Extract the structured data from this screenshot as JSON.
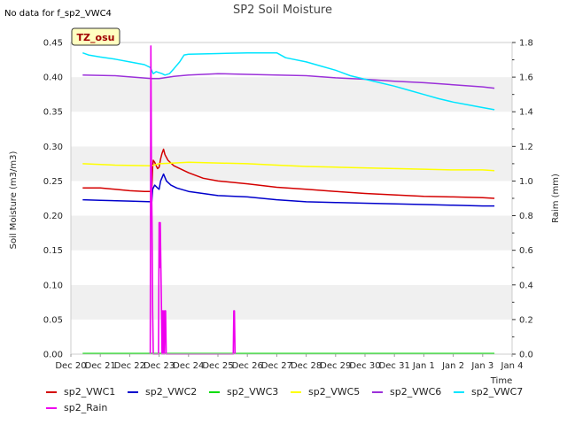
{
  "header": {
    "title": "SP2 Soil Moisture",
    "no_data": "No data for f_sp2_VWC4",
    "tz_badge": "TZ_osu"
  },
  "chart_data": {
    "type": "line",
    "title": "SP2 Soil Moisture",
    "xlabel": "Time",
    "ylabel": "Soil Moisture (m3/m3)",
    "y2label": "Raim (mm)",
    "xlim": [
      0,
      15
    ],
    "ylim": [
      0,
      0.45
    ],
    "y2lim": [
      0,
      1.8
    ],
    "x_ticks": [
      {
        "x": 0,
        "label": "Dec 20"
      },
      {
        "x": 1,
        "label": "Dec 21"
      },
      {
        "x": 2,
        "label": "Dec 22"
      },
      {
        "x": 3,
        "label": "Dec 23"
      },
      {
        "x": 4,
        "label": "Dec 24"
      },
      {
        "x": 5,
        "label": "Dec 25"
      },
      {
        "x": 6,
        "label": "Dec 26"
      },
      {
        "x": 7,
        "label": "Dec 27"
      },
      {
        "x": 8,
        "label": "Dec 28"
      },
      {
        "x": 9,
        "label": "Dec 29"
      },
      {
        "x": 10,
        "label": "Dec 30"
      },
      {
        "x": 11,
        "label": "Dec 31"
      },
      {
        "x": 12,
        "label": "Jan 1"
      },
      {
        "x": 13,
        "label": "Jan 2"
      },
      {
        "x": 14,
        "label": "Jan 3"
      },
      {
        "x": 15,
        "label": "Jan 4"
      }
    ],
    "y_ticks": [
      "0.00",
      "0.05",
      "0.10",
      "0.15",
      "0.20",
      "0.25",
      "0.30",
      "0.35",
      "0.40",
      "0.45"
    ],
    "y2_ticks": [
      "0.0",
      "0.2",
      "0.4",
      "0.6",
      "0.8",
      "1.0",
      "1.2",
      "1.4",
      "1.6",
      "1.8"
    ],
    "grid": "horizontal bands",
    "legend_position": "bottom",
    "series": [
      {
        "name": "sp2_VWC1",
        "color": "#d40000",
        "axis": "left",
        "points": [
          [
            0.4,
            0.24
          ],
          [
            1.0,
            0.24
          ],
          [
            1.5,
            0.238
          ],
          [
            2.0,
            0.236
          ],
          [
            2.5,
            0.235
          ],
          [
            2.75,
            0.235
          ],
          [
            2.78,
            0.27
          ],
          [
            2.8,
            0.28
          ],
          [
            2.85,
            0.277
          ],
          [
            2.9,
            0.272
          ],
          [
            2.95,
            0.268
          ],
          [
            3.0,
            0.27
          ],
          [
            3.05,
            0.282
          ],
          [
            3.1,
            0.29
          ],
          [
            3.15,
            0.296
          ],
          [
            3.2,
            0.288
          ],
          [
            3.3,
            0.28
          ],
          [
            3.5,
            0.272
          ],
          [
            4.0,
            0.262
          ],
          [
            4.5,
            0.254
          ],
          [
            5.0,
            0.25
          ],
          [
            6.0,
            0.246
          ],
          [
            7.0,
            0.241
          ],
          [
            8.0,
            0.238
          ],
          [
            9.0,
            0.235
          ],
          [
            10.0,
            0.232
          ],
          [
            11.0,
            0.23
          ],
          [
            12.0,
            0.228
          ],
          [
            13.0,
            0.227
          ],
          [
            14.0,
            0.226
          ],
          [
            14.4,
            0.225
          ]
        ]
      },
      {
        "name": "sp2_VWC2",
        "color": "#0000cc",
        "axis": "left",
        "points": [
          [
            0.4,
            0.223
          ],
          [
            1.0,
            0.222
          ],
          [
            2.0,
            0.221
          ],
          [
            2.75,
            0.22
          ],
          [
            2.78,
            0.238
          ],
          [
            2.85,
            0.244
          ],
          [
            2.95,
            0.24
          ],
          [
            3.0,
            0.238
          ],
          [
            3.05,
            0.25
          ],
          [
            3.15,
            0.26
          ],
          [
            3.25,
            0.25
          ],
          [
            3.4,
            0.244
          ],
          [
            3.6,
            0.24
          ],
          [
            4.0,
            0.235
          ],
          [
            5.0,
            0.229
          ],
          [
            6.0,
            0.227
          ],
          [
            7.0,
            0.223
          ],
          [
            8.0,
            0.22
          ],
          [
            9.0,
            0.219
          ],
          [
            10.0,
            0.218
          ],
          [
            11.0,
            0.217
          ],
          [
            12.0,
            0.216
          ],
          [
            13.0,
            0.215
          ],
          [
            14.0,
            0.214
          ],
          [
            14.4,
            0.214
          ]
        ]
      },
      {
        "name": "sp2_VWC3",
        "color": "#00dd00",
        "axis": "left",
        "points": [
          [
            0.4,
            0.001
          ],
          [
            14.4,
            0.001
          ]
        ]
      },
      {
        "name": "sp2_VWC5",
        "color": "#ffff00",
        "axis": "left",
        "points": [
          [
            0.4,
            0.275
          ],
          [
            1.5,
            0.273
          ],
          [
            2.75,
            0.272
          ],
          [
            3.0,
            0.275
          ],
          [
            3.5,
            0.276
          ],
          [
            4.0,
            0.277
          ],
          [
            5.0,
            0.276
          ],
          [
            6.0,
            0.275
          ],
          [
            7.0,
            0.273
          ],
          [
            8.0,
            0.271
          ],
          [
            9.0,
            0.27
          ],
          [
            10.0,
            0.269
          ],
          [
            11.0,
            0.268
          ],
          [
            12.0,
            0.267
          ],
          [
            13.0,
            0.266
          ],
          [
            14.0,
            0.266
          ],
          [
            14.4,
            0.265
          ]
        ]
      },
      {
        "name": "sp2_VWC6",
        "color": "#9b30d9",
        "axis": "left",
        "points": [
          [
            0.4,
            0.403
          ],
          [
            1.5,
            0.402
          ],
          [
            2.75,
            0.398
          ],
          [
            3.0,
            0.398
          ],
          [
            3.5,
            0.401
          ],
          [
            4.0,
            0.403
          ],
          [
            4.5,
            0.404
          ],
          [
            5.0,
            0.405
          ],
          [
            6.0,
            0.404
          ],
          [
            7.0,
            0.403
          ],
          [
            8.0,
            0.402
          ],
          [
            9.0,
            0.399
          ],
          [
            10.0,
            0.397
          ],
          [
            11.0,
            0.394
          ],
          [
            12.0,
            0.392
          ],
          [
            13.0,
            0.389
          ],
          [
            14.0,
            0.386
          ],
          [
            14.4,
            0.384
          ]
        ]
      },
      {
        "name": "sp2_VWC7",
        "color": "#00e5ff",
        "axis": "left",
        "points": [
          [
            0.4,
            0.435
          ],
          [
            0.6,
            0.432
          ],
          [
            1.0,
            0.429
          ],
          [
            1.5,
            0.426
          ],
          [
            2.0,
            0.422
          ],
          [
            2.5,
            0.418
          ],
          [
            2.7,
            0.414
          ],
          [
            2.8,
            0.405
          ],
          [
            2.9,
            0.408
          ],
          [
            3.1,
            0.405
          ],
          [
            3.2,
            0.403
          ],
          [
            3.35,
            0.405
          ],
          [
            3.5,
            0.412
          ],
          [
            3.7,
            0.422
          ],
          [
            3.85,
            0.432
          ],
          [
            4.0,
            0.433
          ],
          [
            5.0,
            0.434
          ],
          [
            6.0,
            0.435
          ],
          [
            7.0,
            0.435
          ],
          [
            7.3,
            0.428
          ],
          [
            8.0,
            0.422
          ],
          [
            8.5,
            0.416
          ],
          [
            9.0,
            0.41
          ],
          [
            9.5,
            0.402
          ],
          [
            10.0,
            0.397
          ],
          [
            10.5,
            0.392
          ],
          [
            11.0,
            0.387
          ],
          [
            11.5,
            0.381
          ],
          [
            12.0,
            0.375
          ],
          [
            12.5,
            0.369
          ],
          [
            13.0,
            0.364
          ],
          [
            13.5,
            0.36
          ],
          [
            14.0,
            0.356
          ],
          [
            14.4,
            0.353
          ]
        ]
      },
      {
        "name": "sp2_Rain",
        "color": "#ee00ee",
        "axis": "right",
        "points": [
          [
            2.7,
            0.0
          ],
          [
            2.72,
            1.78
          ],
          [
            2.74,
            1.0
          ],
          [
            2.76,
            0.76
          ],
          [
            2.78,
            0.25
          ],
          [
            2.8,
            0.0
          ],
          [
            2.98,
            0.0
          ],
          [
            3.0,
            0.76
          ],
          [
            3.02,
            0.5
          ],
          [
            3.04,
            0.76
          ],
          [
            3.06,
            0.5
          ],
          [
            3.08,
            0.25
          ],
          [
            3.1,
            0.0
          ],
          [
            3.12,
            0.25
          ],
          [
            3.14,
            0.0
          ],
          [
            3.16,
            0.25
          ],
          [
            3.18,
            0.0
          ],
          [
            3.2,
            0.25
          ],
          [
            3.22,
            0.25
          ],
          [
            3.24,
            0.0
          ],
          [
            5.52,
            0.0
          ],
          [
            5.54,
            0.25
          ],
          [
            5.56,
            0.25
          ],
          [
            5.58,
            0.0
          ]
        ]
      }
    ]
  },
  "legend": {
    "items": [
      {
        "label": "sp2_VWC1",
        "color": "#d40000"
      },
      {
        "label": "sp2_VWC2",
        "color": "#0000cc"
      },
      {
        "label": "sp2_VWC3",
        "color": "#00dd00"
      },
      {
        "label": "sp2_VWC5",
        "color": "#ffff00"
      },
      {
        "label": "sp2_VWC6",
        "color": "#9b30d9"
      },
      {
        "label": "sp2_VWC7",
        "color": "#00e5ff"
      },
      {
        "label": "sp2_Rain",
        "color": "#ee00ee"
      }
    ]
  }
}
